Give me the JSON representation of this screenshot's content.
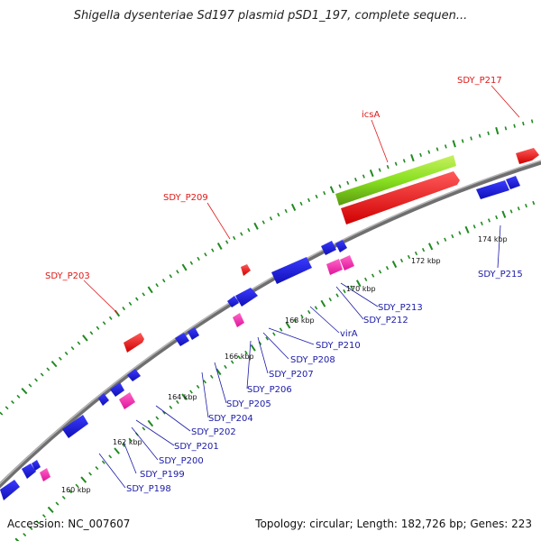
{
  "title": "Shigella dysenteriae Sd197 plasmid pSD1_197, complete sequen...",
  "footer": {
    "accession": "Accession: NC_007607",
    "summary": "Topology: circular; Length: 182,726 bp; Genes: 223"
  },
  "colors": {
    "backbone": "#8c8c8c",
    "forward_cds": "#ff1a1a",
    "reverse_cds": "#1a1adf",
    "rna_feature": "#ff33b0",
    "highlight_gene": "#88e020",
    "tick": "#1f8a1f",
    "label_red": "#e01818",
    "label_blue": "#1a1aa8"
  },
  "kbp_labels": [
    "160 kbp",
    "162 kbp",
    "164 kbp",
    "166 kbp",
    "168 kbp",
    "170 kbp",
    "172 kbp",
    "174 kbp"
  ],
  "outer_labels": [
    "SDY_P203",
    "SDY_P209",
    "icsA",
    "SDY_P217"
  ],
  "inner_labels": [
    "SDY_P198",
    "SDY_P199",
    "SDY_P200",
    "SDY_P201",
    "SDY_P202",
    "SDY_P204",
    "SDY_P205",
    "SDY_P206",
    "SDY_P207",
    "SDY_P208",
    "SDY_P210",
    "virA",
    "SDY_P212",
    "SDY_P213",
    "SDY_P215"
  ]
}
